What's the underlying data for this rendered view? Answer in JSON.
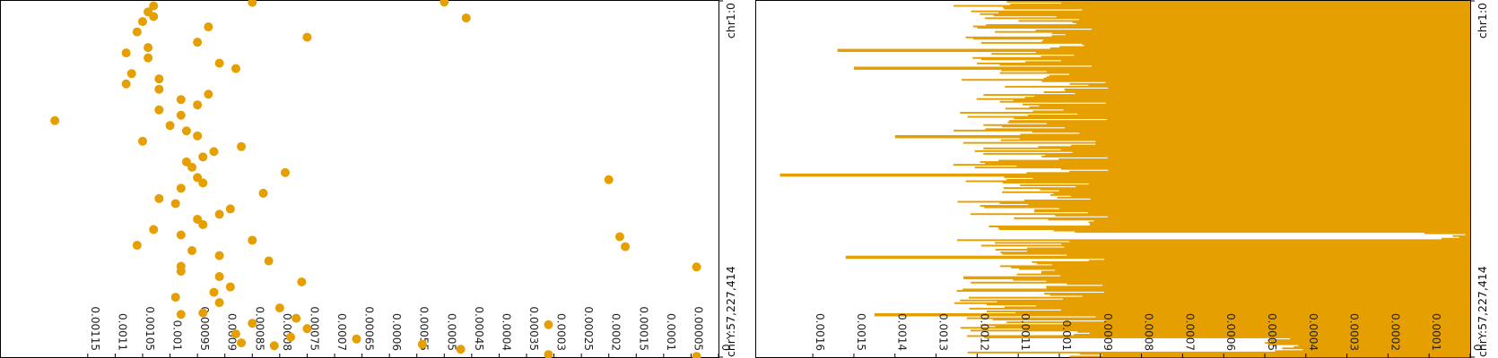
{
  "chart_data": [
    {
      "type": "scatter",
      "orientation": "rotated-90",
      "color": "#e69f00",
      "value_axis": {
        "ticks": [
          "0.00115",
          "0.0011",
          "0.00105",
          "0.001",
          "0.00095",
          "0.0009",
          "0.00085",
          "0.0008",
          "0.00075",
          "0.0007",
          "0.00065",
          "0.0006",
          "0.00055",
          "0.0005",
          "0.00045",
          "0.0004",
          "0.00035",
          "0.0003",
          "0.00025",
          "0.0002",
          "0.00015",
          "0.0001",
          "0.00005",
          "0"
        ],
        "tick_values": [
          0.00115,
          0.0011,
          0.00105,
          0.001,
          0.00095,
          0.0009,
          0.00085,
          0.0008,
          0.00075,
          0.0007,
          0.00065,
          0.0006,
          0.00055,
          0.0005,
          0.00045,
          0.0004,
          0.00035,
          0.0003,
          0.00025,
          0.0002,
          0.00015,
          0.0001,
          5e-05,
          0
        ],
        "range": [
          0,
          0.00131
        ]
      },
      "position_axis": {
        "start_label": "chr1:0",
        "end_label": "chrY:57,227,414",
        "range_fraction": [
          0,
          1
        ]
      },
      "points": [
        [
          0.004,
          0.00085
        ],
        [
          0.014,
          0.00103
        ],
        [
          0.031,
          0.00104
        ],
        [
          0.044,
          0.00103
        ],
        [
          0.058,
          0.00105
        ],
        [
          0.073,
          0.00093
        ],
        [
          0.087,
          0.00106
        ],
        [
          0.102,
          0.00075
        ],
        [
          0.116,
          0.00095
        ],
        [
          0.131,
          0.00104
        ],
        [
          0.146,
          0.00108
        ],
        [
          0.16,
          0.00104
        ],
        [
          0.175,
          0.00091
        ],
        [
          0.19,
          0.00088
        ],
        [
          0.204,
          0.00107
        ],
        [
          0.219,
          0.00102
        ],
        [
          0.233,
          0.00108
        ],
        [
          0.248,
          0.00102
        ],
        [
          0.262,
          0.00093
        ],
        [
          0.277,
          0.00098
        ],
        [
          0.292,
          0.00095
        ],
        [
          0.306,
          0.00102
        ],
        [
          0.321,
          0.00098
        ],
        [
          0.336,
          0.00121
        ],
        [
          0.35,
          0.001
        ],
        [
          0.365,
          0.00097
        ],
        [
          0.379,
          0.00095
        ],
        [
          0.394,
          0.00105
        ],
        [
          0.409,
          0.00087
        ],
        [
          0.423,
          0.00092
        ],
        [
          0.438,
          0.00094
        ],
        [
          0.452,
          0.00097
        ],
        [
          0.467,
          0.00096
        ],
        [
          0.482,
          0.00079
        ],
        [
          0.496,
          0.00095
        ],
        [
          0.511,
          0.00094
        ],
        [
          0.526,
          0.00098
        ],
        [
          0.54,
          0.00083
        ],
        [
          0.555,
          0.00102
        ],
        [
          0.569,
          0.00099
        ],
        [
          0.584,
          0.00089
        ],
        [
          0.599,
          0.00091
        ],
        [
          0.613,
          0.00095
        ],
        [
          0.628,
          0.00094
        ],
        [
          0.642,
          0.00103
        ],
        [
          0.657,
          0.00098
        ],
        [
          0.672,
          0.00085
        ],
        [
          0.686,
          0.00106
        ],
        [
          0.701,
          0.00096
        ],
        [
          0.715,
          0.00091
        ],
        [
          0.73,
          0.00082
        ],
        [
          0.745,
          0.00098
        ],
        [
          0.759,
          0.00098
        ],
        [
          0.774,
          0.00091
        ],
        [
          0.789,
          0.00076
        ],
        [
          0.803,
          0.00089
        ],
        [
          0.818,
          0.00092
        ],
        [
          0.832,
          0.00099
        ],
        [
          0.847,
          0.00091
        ],
        [
          0.862,
          0.0008
        ],
        [
          0.876,
          0.00094
        ],
        [
          0.891,
          0.00077
        ],
        [
          0.905,
          0.00085
        ],
        [
          0.92,
          0.00075
        ],
        [
          0.935,
          0.00088
        ],
        [
          0.949,
          0.00066
        ],
        [
          0.964,
          0.00054
        ],
        [
          0.978,
          0.00047
        ],
        [
          0.993,
          0.00031
        ],
        [
          0.998,
          4e-05
        ],
        [
          0.003,
          0.0005
        ],
        [
          0.048,
          0.00046
        ],
        [
          0.502,
          0.0002
        ],
        [
          0.662,
          0.00018
        ],
        [
          0.747,
          4e-05
        ],
        [
          0.909,
          0.00031
        ],
        [
          0.96,
          0.00087
        ],
        [
          0.944,
          0.00078
        ],
        [
          0.88,
          0.00098
        ],
        [
          0.968,
          0.00081
        ],
        [
          0.69,
          0.00017
        ]
      ]
    },
    {
      "type": "bar",
      "orientation": "rotated-90",
      "color": "#e69f00",
      "value_axis": {
        "ticks": [
          "0.0016",
          "0.0015",
          "0.0014",
          "0.0013",
          "0.0012",
          "0.0011",
          "0.001",
          "0.0009",
          "0.0008",
          "0.0007",
          "0.0006",
          "0.0005",
          "0.0004",
          "0.0003",
          "0.0002",
          "0.0001",
          "0"
        ],
        "tick_values": [
          0.0016,
          0.0015,
          0.0014,
          0.0013,
          0.0012,
          0.0011,
          0.001,
          0.0009,
          0.0008,
          0.0007,
          0.0006,
          0.0005,
          0.0004,
          0.0003,
          0.0002,
          0.0001,
          0
        ],
        "range": [
          0,
          0.00174
        ]
      },
      "position_axis": {
        "start_label": "chr1:0",
        "end_label": "chrY:57,227,414",
        "range_fraction": [
          0,
          1
        ]
      },
      "bar_count": 260,
      "value_profile": {
        "baseline_level": 0.00105,
        "peaks": [
          {
            "position": 0.49,
            "value": 0.00168
          },
          {
            "position": 0.14,
            "value": 0.00154
          },
          {
            "position": 0.19,
            "value": 0.0015
          },
          {
            "position": 0.38,
            "value": 0.0014
          },
          {
            "position": 0.72,
            "value": 0.00152
          },
          {
            "position": 0.88,
            "value": 0.00145
          }
        ],
        "low_bands": [
          {
            "start": 0.65,
            "end": 0.67,
            "value": 0.0
          },
          {
            "start": 0.945,
            "end": 0.985,
            "value": 0.0004
          }
        ]
      }
    }
  ]
}
